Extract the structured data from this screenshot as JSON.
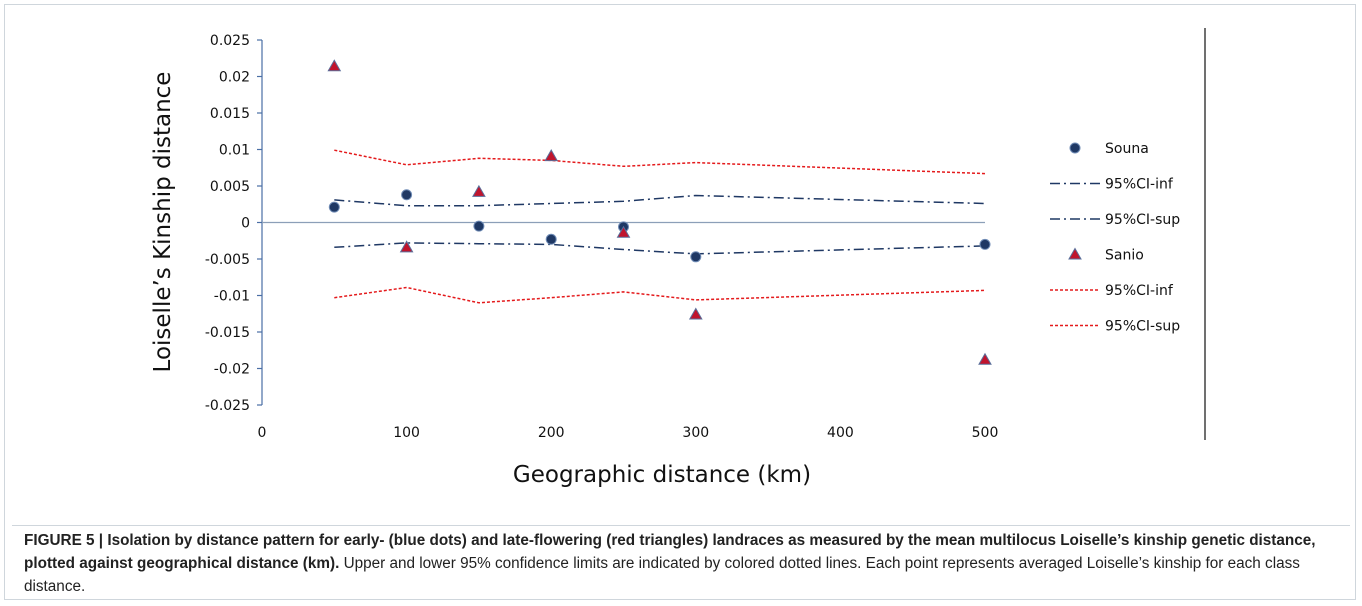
{
  "chart_data": {
    "type": "scatter",
    "xlabel": "Geographic distance (km)",
    "ylabel": "Loiselle’s Kinship distance",
    "xlim": [
      0,
      500
    ],
    "ylim": [
      -0.025,
      0.025
    ],
    "x_ticks": [
      "0",
      "100",
      "200",
      "300",
      "400",
      "500"
    ],
    "y_ticks": [
      "0.025",
      "0.02",
      "0.015",
      "0.01",
      "0.005",
      "0",
      "-0.005",
      "-0.01",
      "-0.015",
      "-0.02",
      "-0.025"
    ],
    "legend_position": "right",
    "series": [
      {
        "name": "Souna",
        "kind": "points",
        "marker": "circle",
        "color": "#1f3864",
        "x": [
          50,
          100,
          150,
          200,
          250,
          300,
          500
        ],
        "y": [
          0.0021,
          0.0038,
          -0.0005,
          -0.0023,
          -0.0006,
          -0.0047,
          -0.003
        ]
      },
      {
        "name": "95%CI-inf",
        "kind": "line",
        "dash": "dashdot",
        "color": "#1f3864",
        "x": [
          50,
          100,
          150,
          200,
          250,
          300,
          500
        ],
        "y": [
          0.0031,
          0.0023,
          0.0023,
          0.0026,
          0.0029,
          0.0037,
          0.0026
        ]
      },
      {
        "name": "95%CI-sup",
        "kind": "line",
        "dash": "dashdot",
        "color": "#1f3864",
        "x": [
          50,
          100,
          150,
          200,
          250,
          300,
          500
        ],
        "y": [
          -0.0034,
          -0.0028,
          -0.0029,
          -0.003,
          -0.0037,
          -0.0043,
          -0.0032
        ]
      },
      {
        "name": "Sanio",
        "kind": "points",
        "marker": "triangle",
        "color": "#c0142d",
        "x": [
          50,
          100,
          150,
          200,
          250,
          300,
          500
        ],
        "y": [
          0.0214,
          -0.0034,
          0.0042,
          0.0091,
          -0.0014,
          -0.0126,
          -0.0188
        ]
      },
      {
        "name": "95%CI-inf",
        "kind": "line",
        "dash": "dotted",
        "color": "#e41a1c",
        "x": [
          50,
          100,
          150,
          200,
          250,
          300,
          500
        ],
        "y": [
          0.0099,
          0.0079,
          0.0088,
          0.0085,
          0.0077,
          0.0082,
          0.0067
        ]
      },
      {
        "name": "95%CI-sup",
        "kind": "line",
        "dash": "dotted",
        "color": "#e41a1c",
        "x": [
          50,
          100,
          150,
          200,
          250,
          300,
          500
        ],
        "y": [
          -0.0103,
          -0.0089,
          -0.011,
          -0.0103,
          -0.0095,
          -0.0106,
          -0.0093
        ]
      }
    ]
  },
  "caption": {
    "bold": "FIGURE 5 | Isolation by distance pattern for early- (blue dots) and late-flowering (red triangles) landraces as measured by the mean multilocus Loiselle’s kinship genetic distance, plotted against geographical distance (km).",
    "normal": " Upper and lower 95% confidence limits are indicated by colored dotted lines. Each point represents averaged Loiselle’s kinship for each class distance."
  }
}
